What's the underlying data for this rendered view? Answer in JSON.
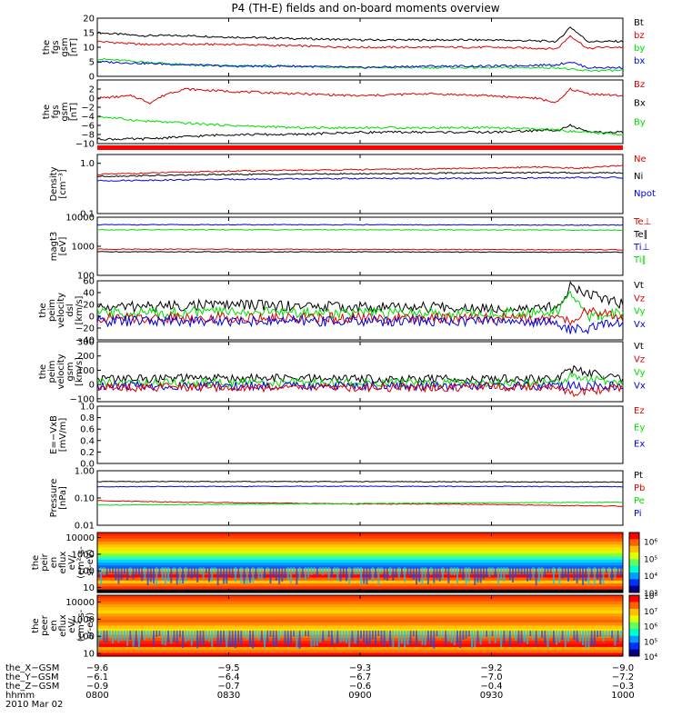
{
  "title": "P4 (TH-E) fields and on-board moments overview",
  "date_label": "2010 Mar 02",
  "orbit_table": {
    "labels": [
      "the_X−GSM",
      "the_Y−GSM",
      "the_Z−GSM",
      "hhmm"
    ],
    "columns": [
      [
        "−9.6",
        "−6.1",
        "−0.9",
        "0800"
      ],
      [
        "−9.5",
        "−6.4",
        "−0.7",
        "0830"
      ],
      [
        "−9.3",
        "−6.7",
        "−0.6",
        "0900"
      ],
      [
        "−9.2",
        "−7.0",
        "−0.4",
        "0930"
      ],
      [
        "−9.0",
        "−7.2",
        "−0.3",
        "1000"
      ]
    ]
  },
  "colors": {
    "black": "#000000",
    "red": "#dd0000",
    "green": "#00dd00",
    "blue": "#0000dd"
  },
  "chart_data": [
    {
      "type": "line",
      "ylabel": [
        "the",
        "fgs",
        "gsm",
        "[nT]"
      ],
      "ylim": [
        0,
        20
      ],
      "yticks": [
        "0",
        "5",
        "10",
        "15",
        "20"
      ],
      "legend": [
        {
          "label": "Bt",
          "color": "black"
        },
        {
          "label": "bz",
          "color": "red"
        },
        {
          "label": "by",
          "color": "green"
        },
        {
          "label": "bx",
          "color": "blue"
        }
      ],
      "series": [
        {
          "name": "Bt",
          "color": "black",
          "x": [
            0,
            10,
            20,
            30,
            45,
            60,
            75,
            90,
            105,
            108,
            112,
            115,
            120
          ],
          "y": [
            15,
            14,
            14,
            13.5,
            13,
            12.5,
            12.5,
            12.5,
            12,
            17,
            12,
            12,
            12
          ]
        },
        {
          "name": "bz",
          "color": "red",
          "x": [
            0,
            10,
            20,
            30,
            45,
            60,
            75,
            90,
            105,
            108,
            112,
            115,
            120
          ],
          "y": [
            12,
            11,
            11,
            11,
            10.5,
            10,
            10,
            10,
            9.5,
            14,
            9.5,
            10,
            10
          ]
        },
        {
          "name": "by",
          "color": "green",
          "x": [
            0,
            10,
            20,
            30,
            45,
            60,
            75,
            90,
            105,
            110,
            115,
            120
          ],
          "y": [
            6,
            5,
            4,
            3.5,
            3.5,
            3,
            3,
            3,
            3,
            2,
            2,
            2
          ]
        },
        {
          "name": "bx",
          "color": "blue",
          "x": [
            0,
            10,
            20,
            30,
            45,
            60,
            75,
            90,
            105,
            108,
            112,
            120
          ],
          "y": [
            5,
            4.5,
            4,
            3.5,
            3.5,
            3,
            3.5,
            3.5,
            4,
            5,
            3,
            3
          ]
        }
      ]
    },
    {
      "type": "line",
      "ylabel": [
        "the",
        "fgs",
        "gsm",
        "[nT]"
      ],
      "ylim": [
        -10,
        4
      ],
      "yticks": [
        "−10",
        "−8",
        "−6",
        "−4",
        "−2",
        "0",
        "2"
      ],
      "legend": [
        {
          "label": "Bz",
          "color": "red"
        },
        {
          "label": "Bx",
          "color": "black"
        },
        {
          "label": "By",
          "color": "green"
        }
      ],
      "series": [
        {
          "name": "Bz",
          "color": "red",
          "x": [
            0,
            8,
            12,
            16,
            20,
            30,
            45,
            60,
            75,
            90,
            100,
            105,
            108,
            112,
            120
          ],
          "y": [
            0,
            0.5,
            -1,
            1,
            2,
            1.5,
            1,
            0.5,
            1,
            0.5,
            0,
            -1,
            2,
            1,
            0.5
          ]
        },
        {
          "name": "Bx",
          "color": "black",
          "x": [
            0,
            10,
            20,
            30,
            45,
            60,
            75,
            90,
            105,
            108,
            112,
            120
          ],
          "y": [
            -9,
            -9,
            -8.5,
            -8,
            -8,
            -7.5,
            -7.5,
            -7.5,
            -7,
            -6,
            -7.5,
            -7.5
          ]
        },
        {
          "name": "By",
          "color": "green",
          "x": [
            0,
            10,
            20,
            30,
            45,
            60,
            75,
            90,
            105,
            110,
            120
          ],
          "y": [
            -4,
            -5,
            -5.5,
            -6,
            -6.5,
            -6.5,
            -6.5,
            -6.5,
            -7,
            -7.5,
            -8
          ]
        }
      ]
    },
    {
      "type": "line",
      "ylabel": [
        "Density",
        "[cm⁻³]"
      ],
      "yscale": "log",
      "ylim": [
        0.1,
        1.5
      ],
      "yticks": [
        "0.1",
        "1.0"
      ],
      "legend": [
        {
          "label": "Ne",
          "color": "red"
        },
        {
          "label": "Ni",
          "color": "black"
        },
        {
          "label": "Npot",
          "color": "blue"
        }
      ],
      "series": [
        {
          "name": "Ne",
          "color": "red",
          "x": [
            0,
            30,
            60,
            90,
            100,
            110,
            120
          ],
          "y": [
            0.6,
            0.7,
            0.75,
            0.8,
            0.85,
            0.8,
            0.9
          ]
        },
        {
          "name": "Ni",
          "color": "black",
          "x": [
            0,
            30,
            60,
            90,
            105,
            120
          ],
          "y": [
            0.55,
            0.6,
            0.62,
            0.65,
            0.65,
            0.65
          ]
        },
        {
          "name": "Npot",
          "color": "blue",
          "x": [
            0,
            30,
            60,
            90,
            105,
            120
          ],
          "y": [
            0.45,
            0.48,
            0.5,
            0.5,
            0.52,
            0.52
          ]
        }
      ]
    },
    {
      "type": "line",
      "ylabel": [
        "magt3",
        "[eV]"
      ],
      "yscale": "log",
      "ylim": [
        100,
        10000
      ],
      "yticks": [
        "100",
        "1000",
        "10000"
      ],
      "legend": [
        {
          "label": "Te⊥",
          "color": "red"
        },
        {
          "label": "Te∥",
          "color": "black"
        },
        {
          "label": "Ti⊥",
          "color": "blue"
        },
        {
          "label": "Ti∥",
          "color": "green"
        }
      ],
      "series": [
        {
          "name": "Ti⊥",
          "color": "blue",
          "x": [
            0,
            60,
            120
          ],
          "y": [
            5500,
            5500,
            5300
          ]
        },
        {
          "name": "Ti∥",
          "color": "green",
          "x": [
            0,
            60,
            120
          ],
          "y": [
            3700,
            3700,
            3600
          ]
        },
        {
          "name": "Te⊥",
          "color": "red",
          "x": [
            0,
            60,
            120
          ],
          "y": [
            800,
            780,
            760
          ]
        },
        {
          "name": "Te∥",
          "color": "black",
          "x": [
            0,
            60,
            120
          ],
          "y": [
            650,
            640,
            620
          ]
        }
      ]
    },
    {
      "type": "line",
      "ylabel": [
        "the",
        "peim",
        "velocity",
        "dsl",
        "[km/s]"
      ],
      "ylim": [
        -40,
        60
      ],
      "yticks": [
        "−40",
        "−20",
        "0",
        "20",
        "40",
        "60"
      ],
      "legend": [
        {
          "label": "Vt",
          "color": "black"
        },
        {
          "label": "Vz",
          "color": "red"
        },
        {
          "label": "Vy",
          "color": "green"
        },
        {
          "label": "Vx",
          "color": "blue"
        }
      ],
      "series": [
        {
          "name": "Vt",
          "color": "black",
          "x": [
            0,
            30,
            60,
            90,
            105,
            108,
            112,
            120
          ],
          "y": [
            15,
            20,
            15,
            15,
            15,
            50,
            40,
            20
          ]
        },
        {
          "name": "Vy",
          "color": "green",
          "x": [
            0,
            30,
            60,
            90,
            105,
            108,
            112,
            120
          ],
          "y": [
            5,
            8,
            5,
            5,
            8,
            40,
            0,
            5
          ]
        },
        {
          "name": "Vz",
          "color": "red",
          "x": [
            0,
            30,
            60,
            90,
            105,
            108,
            112,
            120
          ],
          "y": [
            -3,
            -2,
            -3,
            -3,
            -3,
            -10,
            10,
            -3
          ]
        },
        {
          "name": "Vx",
          "color": "blue",
          "x": [
            0,
            30,
            60,
            90,
            105,
            108,
            112,
            120
          ],
          "y": [
            -8,
            -8,
            -8,
            -8,
            -10,
            -25,
            -20,
            -10
          ]
        }
      ]
    },
    {
      "type": "line",
      "ylabel": [
        "the",
        "peim",
        "velocity",
        "gsm",
        "[km/s]"
      ],
      "ylim": [
        -120,
        300
      ],
      "yticks": [
        "−100",
        "0",
        "100",
        "200",
        "300"
      ],
      "legend": [
        {
          "label": "Vt",
          "color": "black"
        },
        {
          "label": "Vz",
          "color": "red"
        },
        {
          "label": "Vy",
          "color": "green"
        },
        {
          "label": "Vx",
          "color": "blue"
        }
      ],
      "series": [
        {
          "name": "Vt",
          "color": "black",
          "x": [
            0,
            30,
            60,
            90,
            105,
            108,
            120
          ],
          "y": [
            40,
            45,
            40,
            40,
            40,
            110,
            40
          ]
        },
        {
          "name": "Vy",
          "color": "green",
          "x": [
            0,
            30,
            60,
            90,
            105,
            108,
            120
          ],
          "y": [
            10,
            12,
            10,
            10,
            10,
            60,
            10
          ]
        },
        {
          "name": "Vx",
          "color": "blue",
          "x": [
            0,
            30,
            60,
            90,
            120
          ],
          "y": [
            -10,
            -10,
            -10,
            -10,
            -10
          ]
        },
        {
          "name": "Vz",
          "color": "red",
          "x": [
            0,
            30,
            60,
            90,
            105,
            108,
            120
          ],
          "y": [
            -20,
            -20,
            -20,
            -20,
            -20,
            -60,
            -20
          ]
        }
      ]
    },
    {
      "type": "line",
      "ylabel": [
        "E=−VxB",
        "[mV/m]"
      ],
      "ylim": [
        0,
        1
      ],
      "yticks": [
        "0.0",
        "0.2",
        "0.4",
        "0.6",
        "0.8",
        "1.0"
      ],
      "legend": [
        {
          "label": "Ez",
          "color": "red"
        },
        {
          "label": "Ey",
          "color": "green"
        },
        {
          "label": "Ex",
          "color": "blue"
        }
      ],
      "series": []
    },
    {
      "type": "line",
      "ylabel": [
        "Pressure",
        "[nPa]"
      ],
      "yscale": "log",
      "ylim": [
        0.01,
        1.0
      ],
      "yticks": [
        "0.01",
        "0.10",
        "1.00"
      ],
      "legend": [
        {
          "label": "Pt",
          "color": "black"
        },
        {
          "label": "Pb",
          "color": "red"
        },
        {
          "label": "Pe",
          "color": "green"
        },
        {
          "label": "Pi",
          "color": "blue"
        }
      ],
      "series": [
        {
          "name": "Pt",
          "color": "black",
          "x": [
            0,
            60,
            120
          ],
          "y": [
            0.4,
            0.4,
            0.38
          ]
        },
        {
          "name": "Pi",
          "color": "blue",
          "x": [
            0,
            60,
            120
          ],
          "y": [
            0.26,
            0.27,
            0.26
          ]
        },
        {
          "name": "Pb",
          "color": "red",
          "x": [
            0,
            20,
            40,
            60,
            80,
            100,
            120
          ],
          "y": [
            0.08,
            0.07,
            0.065,
            0.06,
            0.06,
            0.055,
            0.05
          ]
        },
        {
          "name": "Pe",
          "color": "green",
          "x": [
            0,
            40,
            80,
            120
          ],
          "y": [
            0.055,
            0.06,
            0.065,
            0.07
          ]
        }
      ]
    },
    {
      "type": "heatmap",
      "ylabel": [
        "the",
        "peir",
        "en",
        "eflux",
        "eV/",
        "(cm²-s-",
        "sr-eV)"
      ],
      "yscale": "log",
      "ylim": [
        5,
        20000
      ],
      "yticks": [
        "10",
        "100",
        "1000",
        "10000"
      ],
      "colorbar_ticks": [
        "10³",
        "10⁴",
        "10⁵",
        "10⁶"
      ],
      "colorbar_range": [
        3,
        6.5
      ]
    },
    {
      "type": "heatmap",
      "ylabel": [
        "the",
        "peer",
        "en",
        "eflux",
        "eV/",
        "(cm²-s-",
        "sr-eV)"
      ],
      "yscale": "log",
      "ylim": [
        7,
        25000
      ],
      "yticks": [
        "10",
        "100",
        "1000",
        "10000"
      ],
      "colorbar_ticks": [
        "10⁴",
        "10⁵",
        "10⁶",
        "10⁷",
        "10⁸"
      ],
      "colorbar_range": [
        4,
        8
      ]
    }
  ]
}
